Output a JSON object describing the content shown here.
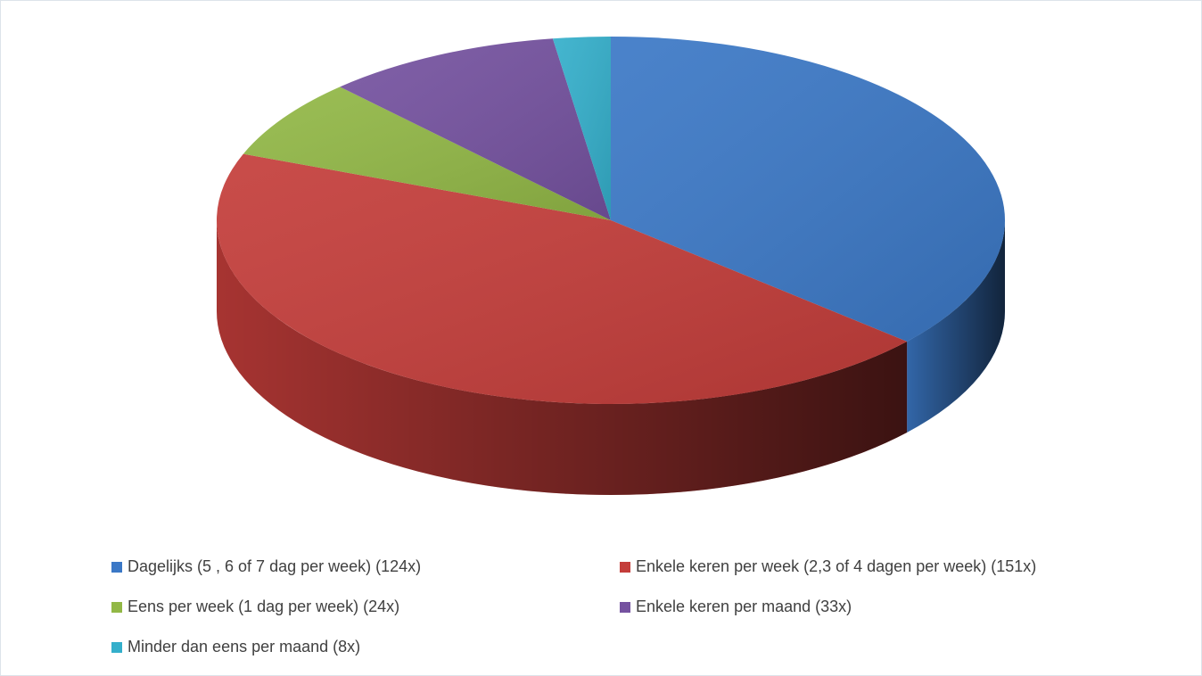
{
  "chart_data": {
    "type": "pie",
    "categories": [
      "Dagelijks (5 , 6 of 7 dag per week) (124x)",
      "Enkele keren per week (2,3 of 4 dagen per week) (151x)",
      "Eens per week (1 dag per week) (24x)",
      "Enkele keren per maand (33x)",
      "Minder dan eens per maand (8x)"
    ],
    "values": [
      124,
      151,
      24,
      33,
      8
    ],
    "colors": [
      "#3b78c6",
      "#c43d3a",
      "#92b846",
      "#7552a0",
      "#34afcb"
    ],
    "legend": "bottom"
  }
}
